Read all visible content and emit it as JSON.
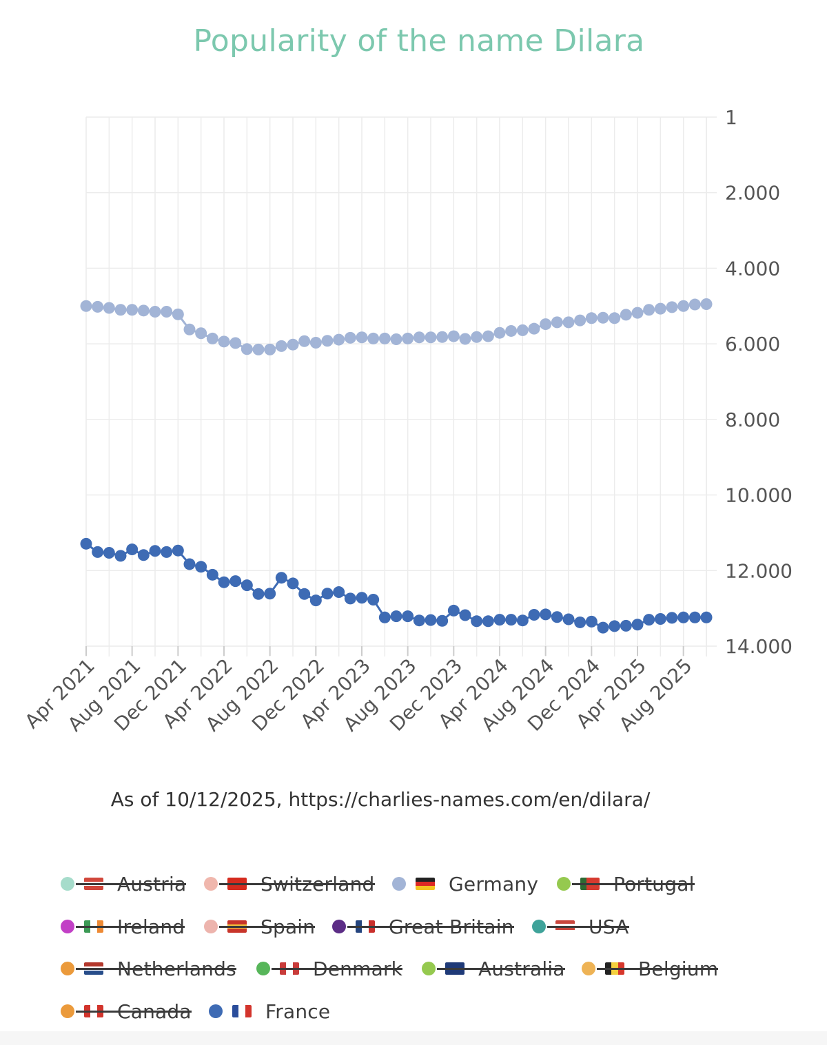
{
  "chart_data": {
    "type": "line",
    "title": "Popularity of the name Dilara",
    "source": "As of 10/12/2025, https://charlies-names.com/en/dilara/",
    "y_axis": {
      "position": "right",
      "inverted": true,
      "range": [
        1,
        14000
      ],
      "ticks": [
        1,
        2000,
        4000,
        6000,
        8000,
        10000,
        12000,
        14000
      ],
      "tick_labels": [
        "1",
        "2.000",
        "4.000",
        "6.000",
        "8.000",
        "10.000",
        "12.000",
        "14.000"
      ]
    },
    "x_axis": {
      "tick_labels": [
        "Apr 2021",
        "Aug 2021",
        "Dec 2021",
        "Apr 2022",
        "Aug 2022",
        "Dec 2022",
        "Apr 2023",
        "Aug 2023",
        "Dec 2023",
        "Apr 2024",
        "Aug 2024",
        "Dec 2024",
        "Apr 2025",
        "Aug 2025"
      ],
      "first_month": "Apr 2021",
      "point_count": 55,
      "interval_months": 1
    },
    "grid": true,
    "series": [
      {
        "name": "Germany",
        "color": "#a2b4d6",
        "values": [
          5000,
          5020,
          5050,
          5100,
          5100,
          5120,
          5150,
          5150,
          5220,
          5620,
          5720,
          5860,
          5940,
          5980,
          6140,
          6150,
          6150,
          6060,
          6020,
          5930,
          5970,
          5920,
          5890,
          5840,
          5830,
          5860,
          5860,
          5880,
          5860,
          5830,
          5830,
          5820,
          5800,
          5870,
          5820,
          5800,
          5710,
          5660,
          5640,
          5600,
          5480,
          5430,
          5430,
          5380,
          5320,
          5310,
          5320,
          5230,
          5180,
          5100,
          5070,
          5030,
          5000,
          4960,
          4950
        ]
      },
      {
        "name": "France",
        "color": "#3e6bb4",
        "values": [
          11290,
          11510,
          11530,
          11610,
          11440,
          11590,
          11480,
          11510,
          11470,
          11830,
          11900,
          12110,
          12310,
          12280,
          12390,
          12620,
          12610,
          12190,
          12340,
          12620,
          12790,
          12610,
          12570,
          12740,
          12720,
          12770,
          13240,
          13210,
          13210,
          13320,
          13310,
          13330,
          13060,
          13180,
          13340,
          13340,
          13300,
          13300,
          13320,
          13170,
          13160,
          13230,
          13290,
          13370,
          13350,
          13510,
          13470,
          13460,
          13430,
          13300,
          13280,
          13250,
          13240,
          13240,
          13240
        ]
      }
    ]
  },
  "legend": [
    {
      "name": "Austria",
      "color": "#a6dccb",
      "active": false,
      "flag": "austria-flag-icon",
      "flag_colors": [
        "#d1473b",
        "#ffffff",
        "#d1473b"
      ],
      "flag_dir": "h"
    },
    {
      "name": "Switzerland",
      "color": "#f0b7ad",
      "active": false,
      "flag": "switzerland-flag-icon",
      "flag_colors": [
        "#d52b1e"
      ],
      "flag_dir": "v"
    },
    {
      "name": "Germany",
      "color": "#a2b4d6",
      "active": true,
      "flag": "germany-flag-icon",
      "flag_colors": [
        "#222222",
        "#dd2a25",
        "#f4c521"
      ],
      "flag_dir": "h"
    },
    {
      "name": "Portugal",
      "color": "#95c94f",
      "active": false,
      "flag": "portugal-flag-icon",
      "flag_colors": [
        "#2d6a33",
        "#d63a2f",
        "#d63a2f"
      ],
      "flag_dir": "v"
    },
    {
      "name": "Ireland",
      "color": "#c240c6",
      "active": false,
      "flag": "ireland-flag-icon",
      "flag_colors": [
        "#3c9a55",
        "#ffffff",
        "#ee8a34"
      ],
      "flag_dir": "v"
    },
    {
      "name": "Spain",
      "color": "#edb4ad",
      "active": false,
      "flag": "spain-flag-icon",
      "flag_colors": [
        "#c8342a",
        "#f2c23d",
        "#c8342a"
      ],
      "flag_dir": "h"
    },
    {
      "name": "Great Britain",
      "color": "#5c2d86",
      "active": false,
      "flag": "great-britain-flag-icon",
      "flag_colors": [
        "#25457f",
        "#ffffff",
        "#c9302c"
      ],
      "flag_dir": "v"
    },
    {
      "name": "USA",
      "color": "#3fa39a",
      "active": false,
      "flag": "usa-flag-icon",
      "flag_colors": [
        "#c9463d",
        "#ffffff",
        "#c9463d",
        "#ffffff"
      ],
      "flag_dir": "h"
    },
    {
      "name": "Netherlands",
      "color": "#eb9a3b",
      "active": false,
      "flag": "netherlands-flag-icon",
      "flag_colors": [
        "#b3382c",
        "#ffffff",
        "#274d8a"
      ],
      "flag_dir": "h"
    },
    {
      "name": "Denmark",
      "color": "#57b65a",
      "active": false,
      "flag": "denmark-flag-icon",
      "flag_colors": [
        "#c83c3a",
        "#ffffff",
        "#c83c3a"
      ],
      "flag_dir": "v"
    },
    {
      "name": "Australia",
      "color": "#95c94f",
      "active": false,
      "flag": "australia-flag-icon",
      "flag_colors": [
        "#1f3a78"
      ],
      "flag_dir": "v"
    },
    {
      "name": "Belgium",
      "color": "#eeb355",
      "active": false,
      "flag": "belgium-flag-icon",
      "flag_colors": [
        "#222222",
        "#f4d03f",
        "#d6372c"
      ],
      "flag_dir": "v"
    },
    {
      "name": "Canada",
      "color": "#eb9a3b",
      "active": false,
      "flag": "canada-flag-icon",
      "flag_colors": [
        "#d2342c",
        "#ffffff",
        "#d2342c"
      ],
      "flag_dir": "v"
    },
    {
      "name": "France",
      "color": "#3e6bb4",
      "active": true,
      "flag": "france-flag-icon",
      "flag_colors": [
        "#2a4d9b",
        "#ffffff",
        "#d3342c"
      ],
      "flag_dir": "v"
    }
  ]
}
